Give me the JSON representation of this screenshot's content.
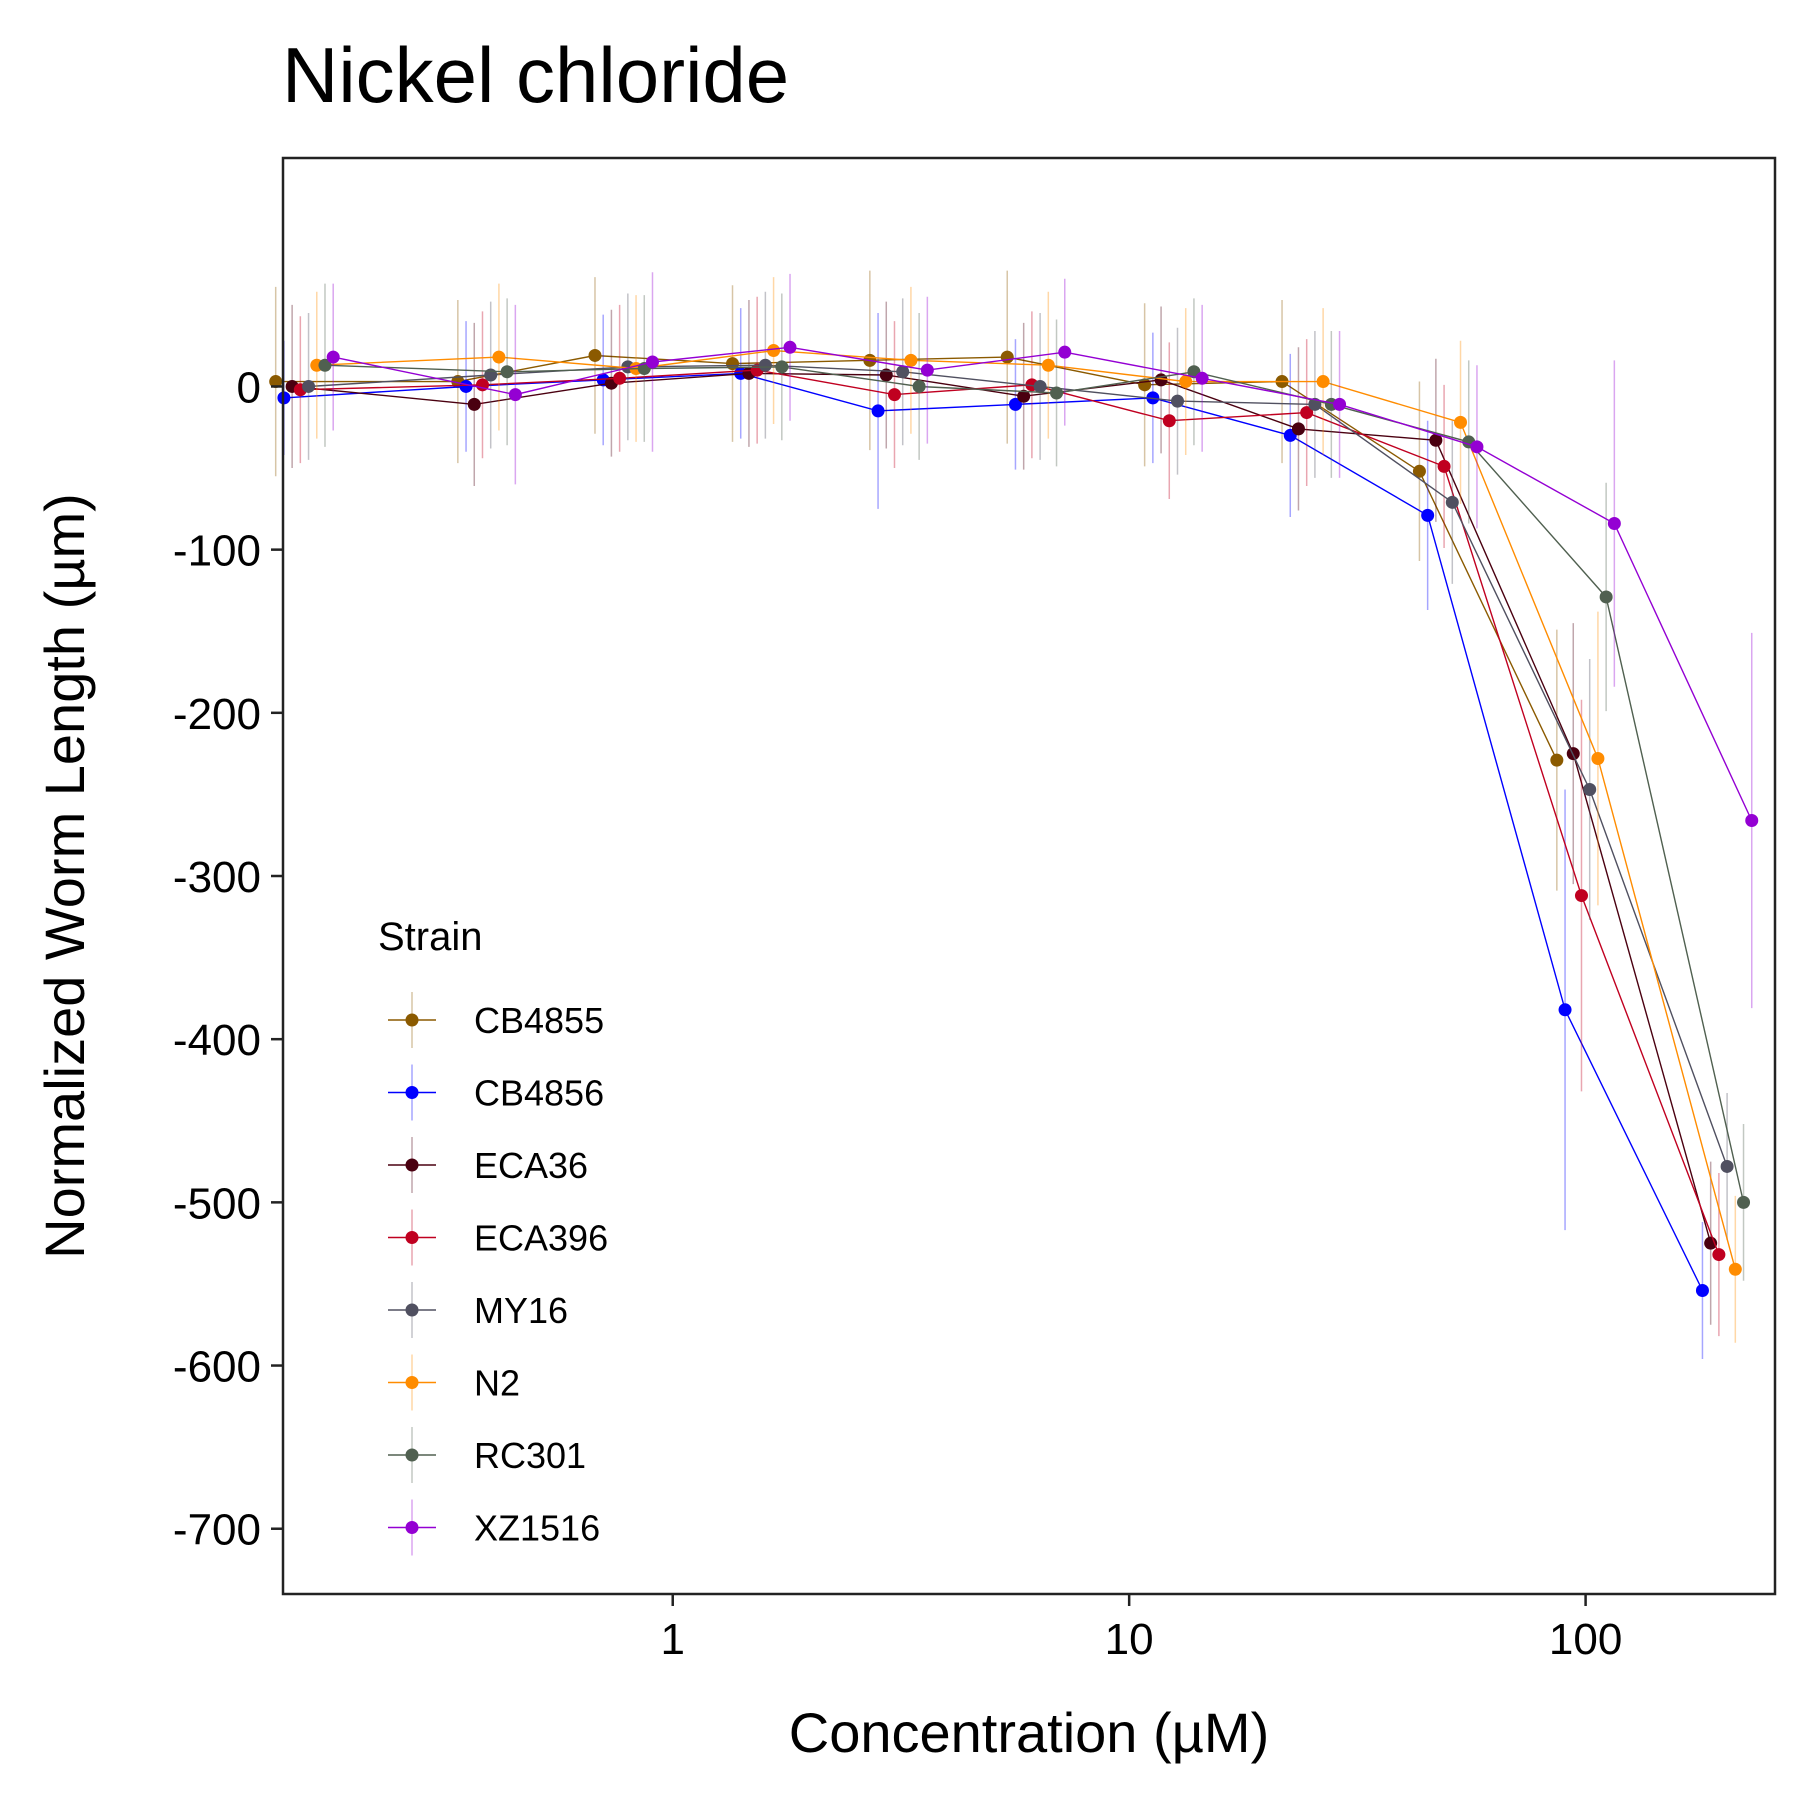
{
  "chart_data": {
    "type": "line",
    "title": "Nickel chloride",
    "xlabel": "Concentration (µM)",
    "ylabel": "Normalized Worm Length (µm)",
    "x_scale": "log",
    "xlim": [
      0.14,
      260
    ],
    "ylim": [
      -740,
      140
    ],
    "x_ticks": [
      1,
      10,
      100
    ],
    "x_tick_labels": [
      "1",
      "10",
      "100"
    ],
    "y_ticks": [
      0,
      -100,
      -200,
      -300,
      -400,
      -500,
      -600,
      -700
    ],
    "y_tick_labels": [
      "0",
      "-100",
      "-200",
      "-300",
      "-400",
      "-500",
      "-600",
      "-700"
    ],
    "grid": false,
    "legend": {
      "title": "Strain",
      "placement": "bottom-left inside"
    },
    "series": [
      {
        "name": "CB4855",
        "color": "#8B5A00",
        "x": [
          0.156,
          0.391,
          0.781,
          1.563,
          3.125,
          6.25,
          12.5,
          25,
          50,
          100
        ],
        "y": [
          3,
          3,
          19,
          14,
          16,
          18,
          1,
          3,
          -52,
          -229
        ],
        "err": [
          58,
          50,
          48,
          48,
          55,
          53,
          50,
          50,
          55,
          80
        ]
      },
      {
        "name": "CB4856",
        "color": "#0000FF",
        "x": [
          0.156,
          0.391,
          0.781,
          1.563,
          3.125,
          6.25,
          12.5,
          25,
          50,
          100,
          200
        ],
        "y": [
          -7,
          0,
          4,
          8,
          -15,
          -11,
          -7,
          -30,
          -79,
          -382,
          -554
        ],
        "err": [
          35,
          40,
          40,
          40,
          60,
          40,
          40,
          50,
          58,
          135,
          42
        ]
      },
      {
        "name": "ECA36",
        "color": "#4A0010",
        "x": [
          0.156,
          0.391,
          0.781,
          1.563,
          3.125,
          6.25,
          12.5,
          25,
          50,
          100,
          200
        ],
        "y": [
          0,
          -11,
          2,
          8,
          7,
          -6,
          4,
          -26,
          -33,
          -225,
          -525
        ],
        "err": [
          50,
          50,
          45,
          45,
          45,
          45,
          45,
          50,
          50,
          80,
          50
        ]
      },
      {
        "name": "ECA396",
        "color": "#C00020",
        "x": [
          0.156,
          0.391,
          0.781,
          1.563,
          3.125,
          6.25,
          12.5,
          25,
          50,
          100,
          200
        ],
        "y": [
          -2,
          1,
          5,
          10,
          -5,
          1,
          -21,
          -16,
          -49,
          -312,
          -532
        ],
        "err": [
          45,
          45,
          45,
          45,
          45,
          45,
          48,
          45,
          50,
          120,
          50
        ]
      },
      {
        "name": "MY16",
        "color": "#505060",
        "x": [
          0.156,
          0.391,
          0.781,
          1.563,
          3.125,
          6.25,
          12.5,
          25,
          50,
          100,
          200
        ],
        "y": [
          0,
          7,
          12,
          13,
          9,
          0,
          -9,
          -11,
          -71,
          -247,
          -478
        ],
        "err": [
          45,
          45,
          45,
          45,
          45,
          45,
          45,
          45,
          50,
          80,
          45
        ]
      },
      {
        "name": "N2",
        "color": "#FF8C00",
        "x": [
          0.156,
          0.391,
          0.781,
          1.563,
          3.125,
          6.25,
          12.5,
          25,
          50,
          100,
          200
        ],
        "y": [
          13,
          18,
          11,
          22,
          16,
          13,
          3,
          3,
          -22,
          -228,
          -541
        ],
        "err": [
          45,
          45,
          45,
          45,
          45,
          45,
          45,
          45,
          50,
          90,
          45
        ]
      },
      {
        "name": "RC301",
        "color": "#506050",
        "x": [
          0.156,
          0.391,
          0.781,
          1.563,
          3.125,
          6.25,
          12.5,
          25,
          50,
          100,
          200
        ],
        "y": [
          13,
          9,
          11,
          12,
          0,
          -4,
          9,
          -11,
          -34,
          -129,
          -500
        ],
        "err": [
          50,
          45,
          45,
          45,
          45,
          45,
          45,
          45,
          50,
          70,
          48
        ]
      },
      {
        "name": "XZ1516",
        "color": "#9400D3",
        "x": [
          0.156,
          0.391,
          0.781,
          1.563,
          3.125,
          6.25,
          12.5,
          25,
          50,
          100,
          200
        ],
        "y": [
          18,
          -5,
          15,
          24,
          10,
          21,
          5,
          -11,
          -37,
          -84,
          -266
        ],
        "err": [
          45,
          55,
          55,
          45,
          45,
          45,
          45,
          45,
          50,
          100,
          115
        ]
      }
    ]
  }
}
